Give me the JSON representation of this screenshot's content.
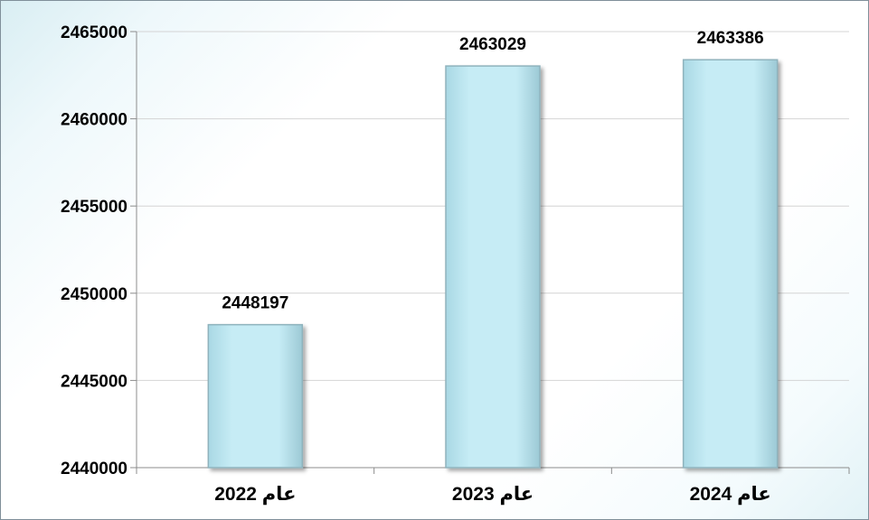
{
  "chart_data": {
    "type": "bar",
    "categories": [
      "عام 2022",
      "عام 2023",
      "عام 2024"
    ],
    "values": [
      2448197,
      2463029,
      2463386
    ],
    "data_labels": [
      "2448197",
      "2463029",
      "2463386"
    ],
    "ylim": [
      2440000,
      2465000
    ],
    "yticks": [
      2440000,
      2445000,
      2450000,
      2455000,
      2460000,
      2465000
    ],
    "ytick_labels": [
      "2440000",
      "2445000",
      "2450000",
      "2455000",
      "2460000",
      "2465000"
    ],
    "title": "",
    "xlabel": "",
    "ylabel": "",
    "grid": true,
    "legend": "none",
    "colors": {
      "bar_fill": "#bfe9f3",
      "bar_edge": "#8fb3bd",
      "bar_shadow": "#6f8f99",
      "grid": "#d4d4d4",
      "axis": "#8c8c8c"
    }
  }
}
